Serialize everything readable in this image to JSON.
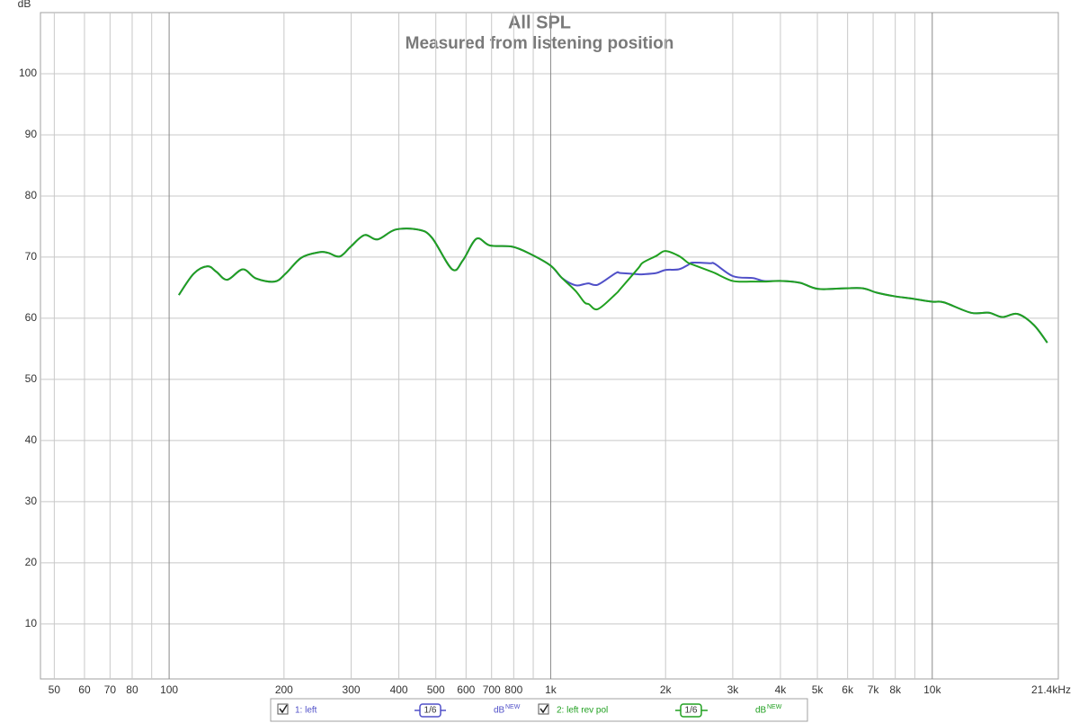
{
  "chart_data": {
    "type": "line",
    "title": "All SPL",
    "subtitle": "Measured from listening position",
    "y_label": "dB",
    "log_x": true,
    "grid": true,
    "xlim": [
      46,
      21400
    ],
    "ylim": [
      1,
      110
    ],
    "yticks": [
      10,
      20,
      30,
      40,
      50,
      60,
      70,
      80,
      90,
      100
    ],
    "xticks": [
      50,
      60,
      70,
      80,
      100,
      200,
      300,
      400,
      500,
      600,
      700,
      800,
      {
        "value": 1000,
        "label": "1k"
      },
      {
        "value": 2000,
        "label": "2k"
      },
      {
        "value": 3000,
        "label": "3k"
      },
      {
        "value": 4000,
        "label": "4k"
      },
      {
        "value": 5000,
        "label": "5k"
      },
      {
        "value": 6000,
        "label": "6k"
      },
      {
        "value": 7000,
        "label": "7k"
      },
      {
        "value": 8000,
        "label": "8k"
      },
      {
        "value": 10000,
        "label": "10k"
      },
      {
        "value": 21400,
        "label": "21.4kHz"
      }
    ],
    "xgrid_unlabeled": [
      90,
      900,
      9000
    ],
    "x": [
      106,
      116,
      126,
      133,
      142,
      156,
      169,
      189,
      202,
      222,
      247,
      261,
      280,
      299,
      325,
      352,
      392,
      449,
      488,
      552,
      589,
      639,
      693,
      794,
      885,
      1000,
      1070,
      1161,
      1226,
      1259,
      1330,
      1482,
      1523,
      1697,
      1744,
      1891,
      1997,
      2166,
      2288,
      2350,
      2619,
      2692,
      3000,
      3343,
      3435,
      3627,
      4042,
      4504,
      5020,
      5908,
      6584,
      7144,
      7961,
      8875,
      10000,
      10730,
      12630,
      14070,
      15260,
      16740,
      18460,
      20020
    ],
    "series": [
      {
        "name": "1: left",
        "color": "#5050c8",
        "values": [
          63.8,
          67.3,
          68.5,
          67.6,
          66.3,
          68.0,
          66.5,
          66.0,
          67.3,
          69.9,
          70.8,
          70.7,
          70.1,
          71.7,
          73.6,
          72.9,
          74.5,
          74.5,
          73.2,
          68.0,
          69.5,
          73.0,
          71.9,
          71.7,
          70.5,
          68.6,
          66.6,
          65.4,
          65.6,
          65.7,
          65.5,
          67.4,
          67.4,
          67.2,
          67.2,
          67.4,
          67.9,
          68.0,
          68.7,
          69.1,
          69.0,
          68.9,
          66.9,
          66.6,
          66.5,
          66.1,
          66.1,
          65.8,
          64.8,
          64.9,
          64.9,
          64.2,
          63.6,
          63.2,
          62.7,
          62.6,
          60.9,
          60.9,
          60.2,
          60.7,
          58.9,
          56.0
        ]
      },
      {
        "name": "2: left rev pol",
        "color": "#20a020",
        "values": [
          63.8,
          67.3,
          68.5,
          67.6,
          66.3,
          68.0,
          66.5,
          66.0,
          67.3,
          69.9,
          70.8,
          70.7,
          70.1,
          71.7,
          73.6,
          72.9,
          74.5,
          74.5,
          73.2,
          68.0,
          69.5,
          73.0,
          71.9,
          71.7,
          70.5,
          68.6,
          66.6,
          64.5,
          62.6,
          62.3,
          61.5,
          64.0,
          64.8,
          68.2,
          69.1,
          70.2,
          71.0,
          70.2,
          69.1,
          68.8,
          67.7,
          67.4,
          66.1,
          66.0,
          66.0,
          66.0,
          66.1,
          65.8,
          64.8,
          64.9,
          64.9,
          64.2,
          63.6,
          63.2,
          62.7,
          62.6,
          60.9,
          60.9,
          60.2,
          60.7,
          58.9,
          56.0
        ]
      }
    ],
    "legend": {
      "smoothing": "1/6",
      "unit": "dB",
      "unit_tag": "NEW"
    }
  }
}
